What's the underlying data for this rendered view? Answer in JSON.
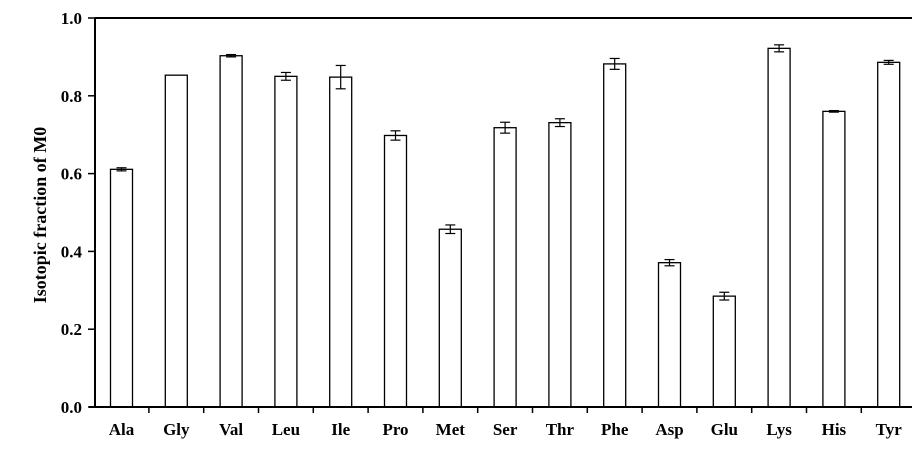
{
  "chart_data": {
    "type": "bar",
    "categories": [
      "Ala",
      "Gly",
      "Val",
      "Leu",
      "Ile",
      "Pro",
      "Met",
      "Ser",
      "Thr",
      "Phe",
      "Asp",
      "Glu",
      "Lys",
      "His",
      "Tyr"
    ],
    "series": [
      {
        "values": [
          0.611,
          0.853,
          0.903,
          0.85,
          0.848,
          0.698,
          0.457,
          0.718,
          0.731,
          0.882,
          0.371,
          0.285,
          0.922,
          0.76,
          0.886
        ],
        "errors": [
          0.004,
          0.0,
          0.003,
          0.01,
          0.03,
          0.012,
          0.011,
          0.014,
          0.01,
          0.014,
          0.008,
          0.01,
          0.009,
          0.002,
          0.005
        ]
      }
    ],
    "title": "",
    "xlabel": "",
    "ylabel": "Isotopic fraction of M0",
    "ylim": [
      0,
      1.0
    ],
    "yticks": [
      "0.0",
      "0.2",
      "0.4",
      "0.6",
      "0.8",
      "1.0"
    ],
    "grid": false,
    "legend": "none",
    "colors": {
      "bar_fill": "#ffffff",
      "bar_stroke": "#000000",
      "axis": "#000000"
    }
  }
}
